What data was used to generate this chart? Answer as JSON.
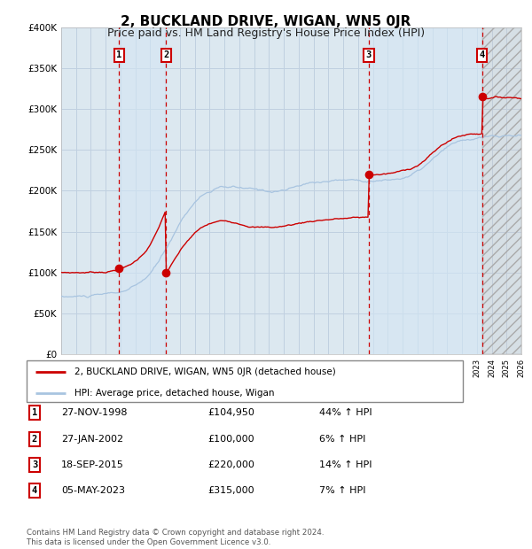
{
  "title": "2, BUCKLAND DRIVE, WIGAN, WN5 0JR",
  "subtitle": "Price paid vs. HM Land Registry's House Price Index (HPI)",
  "x_start_year": 1995,
  "x_end_year": 2026,
  "y_min": 0,
  "y_max": 400000,
  "y_ticks": [
    0,
    50000,
    100000,
    150000,
    200000,
    250000,
    300000,
    350000,
    400000
  ],
  "y_tick_labels": [
    "£0",
    "£50K",
    "£100K",
    "£150K",
    "£200K",
    "£250K",
    "£300K",
    "£350K",
    "£400K"
  ],
  "sale_dates_numeric": [
    1998.9,
    2002.07,
    2015.72,
    2023.35
  ],
  "sale_prices": [
    104950,
    100000,
    220000,
    315000
  ],
  "sale_labels": [
    "1",
    "2",
    "3",
    "4"
  ],
  "sale_dates_str": [
    "27-NOV-1998",
    "27-JAN-2002",
    "18-SEP-2015",
    "05-MAY-2023"
  ],
  "sale_hpi_pct": [
    "44%",
    "6%",
    "14%",
    "7%"
  ],
  "hpi_line_color": "#a8c4e0",
  "price_line_color": "#cc0000",
  "dot_color": "#cc0000",
  "vline_color": "#cc0000",
  "shade_color": "#d4e6f5",
  "grid_color": "#c0d0e0",
  "background_color": "#dce8f0",
  "plot_bg_color": "#dce8f0",
  "legend_label_red": "2, BUCKLAND DRIVE, WIGAN, WN5 0JR (detached house)",
  "legend_label_blue": "HPI: Average price, detached house, Wigan",
  "footer_text": "Contains HM Land Registry data © Crown copyright and database right 2024.\nThis data is licensed under the Open Government Licence v3.0.",
  "title_fontsize": 11,
  "subtitle_fontsize": 9
}
